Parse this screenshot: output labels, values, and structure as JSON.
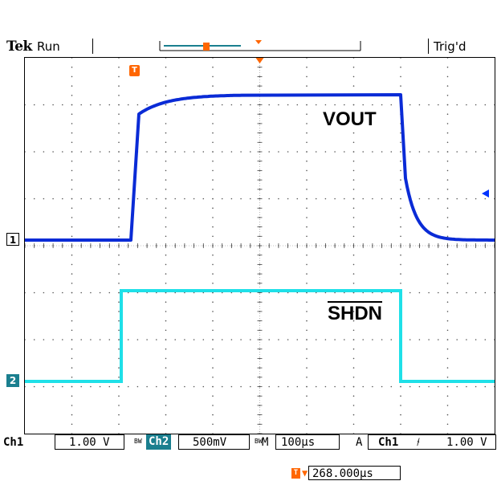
{
  "header": {
    "brand": "Tek",
    "acq_state": "Run",
    "trigger_status": "Trig'd"
  },
  "traces": {
    "ch1_label": "VOUT",
    "ch2_label": "SHDN"
  },
  "markers": {
    "ch1": "1",
    "ch2": "2",
    "trigger": "T"
  },
  "footer": {
    "ch1_name": "Ch1",
    "ch1_scale": "1.00 V",
    "ch2_bw": "BW",
    "ch2_name": "Ch2",
    "ch2_scale": "500mV",
    "time_bw": "BW",
    "time_prefix": "M",
    "time_scale": "100µs",
    "trig_mode": "A",
    "trig_source": "Ch1",
    "trig_slope": "⫮",
    "trig_level": "1.00 V",
    "trig_position": "268.000µs"
  },
  "colors": {
    "ch1": "#0a2bd6",
    "ch2": "#1fe0e8",
    "trigger": "#ff6600"
  }
}
